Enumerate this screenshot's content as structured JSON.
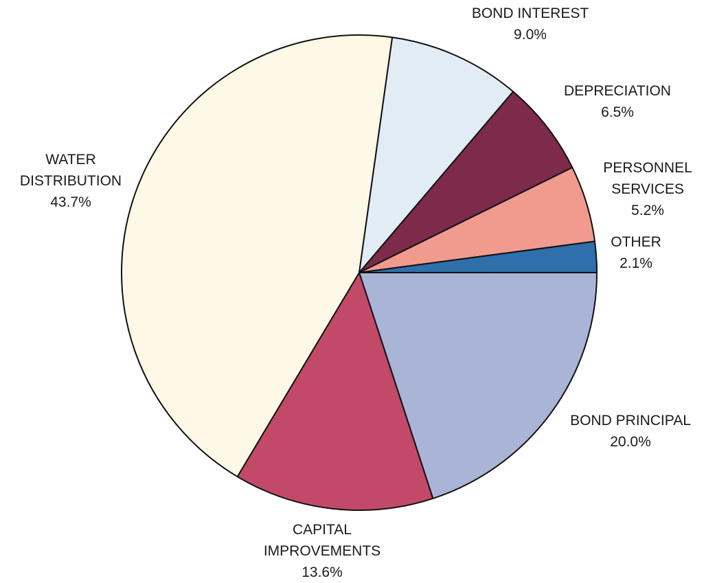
{
  "chart_data": {
    "type": "pie",
    "title": "",
    "slices": [
      {
        "key": "bond_principal",
        "label": [
          "BOND PRINCIPAL"
        ],
        "value": 20.0,
        "value_label": "20.0%",
        "color": "#a9b4d6"
      },
      {
        "key": "capital_improvements",
        "label": [
          "CAPITAL",
          "IMPROVEMENTS"
        ],
        "value": 13.6,
        "value_label": "13.6%",
        "color": "#c24a68"
      },
      {
        "key": "water_distribution",
        "label": [
          "WATER",
          "DISTRIBUTION"
        ],
        "value": 43.7,
        "value_label": "43.7%",
        "color": "#fdf9e6"
      },
      {
        "key": "bond_interest",
        "label": [
          "BOND INTEREST"
        ],
        "value": 9.0,
        "value_label": "9.0%",
        "color": "#e2ecf5"
      },
      {
        "key": "depreciation",
        "label": [
          "DEPRECIATION"
        ],
        "value": 6.5,
        "value_label": "6.5%",
        "color": "#7e2a4a"
      },
      {
        "key": "personnel_services",
        "label": [
          "PERSONNEL",
          "SERVICES"
        ],
        "value": 5.2,
        "value_label": "5.2%",
        "color": "#f19a8e"
      },
      {
        "key": "other",
        "label": [
          "OTHER"
        ],
        "value": 2.1,
        "value_label": "2.1%",
        "color": "#2f6faa"
      }
    ],
    "start_angle_deg": 0,
    "direction": "clockwise",
    "legend": "none",
    "slice_outline_color": "#111111"
  }
}
